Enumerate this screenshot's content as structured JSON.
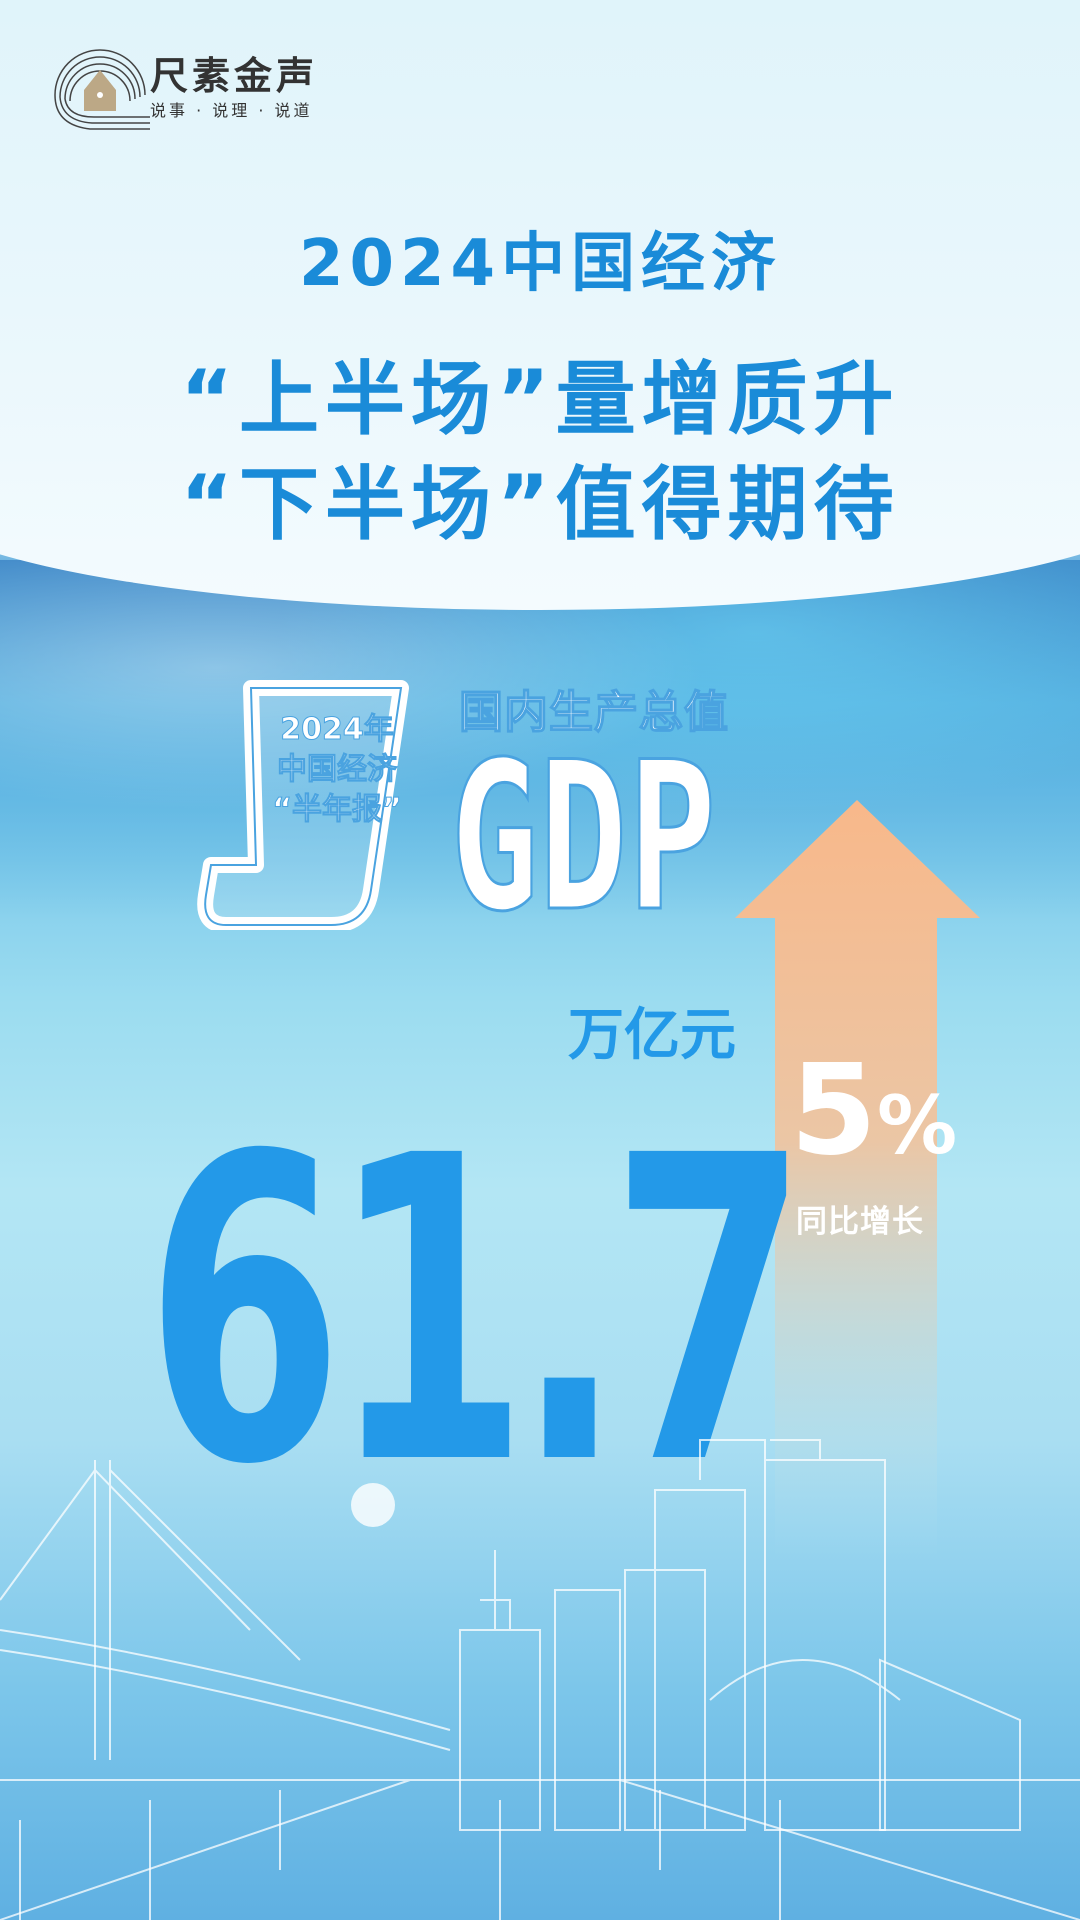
{
  "logo": {
    "name": "尺素金声",
    "tagline": "说事 · 说理 · 说道"
  },
  "title": {
    "line1": "2024中国经济",
    "line2": "“上半场”量增质升",
    "line3": "“下半场”值得期待"
  },
  "badge": {
    "line1": "2024年",
    "line2": "中国经济",
    "line3": "“半年报”"
  },
  "gdp": {
    "label": "国内生产总值",
    "abbr": "GDP",
    "value": "61.7",
    "unit": "万亿元",
    "growth": "5",
    "growth_unit": "%",
    "growth_label": "同比增长"
  },
  "colors": {
    "title": "#1a8bd8",
    "value": "#2399e8",
    "arrow": "#f8b88a"
  }
}
